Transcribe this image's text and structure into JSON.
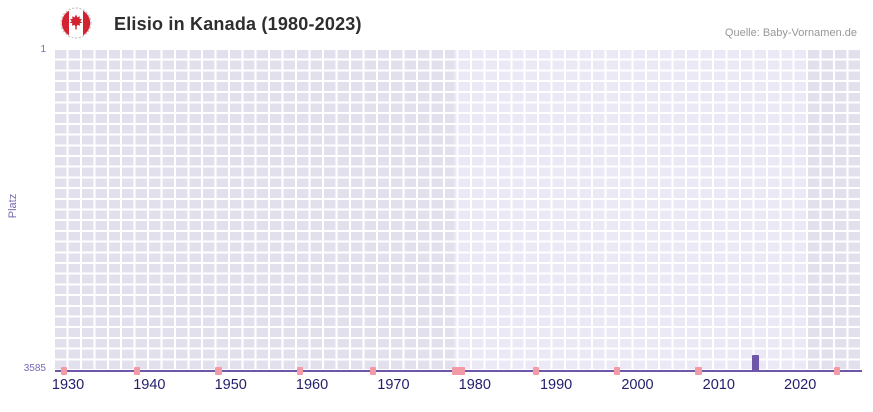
{
  "header": {
    "title": "Elisio in Kanada (1980-2023)",
    "source": "Quelle: Baby-Vornamen.de",
    "flag_icon": "canada-flag-icon"
  },
  "chart_data": {
    "type": "bar",
    "title": "Elisio in Kanada (1980-2023)",
    "xlabel": "",
    "ylabel": "Platz",
    "y_axis_inverted": true,
    "ylim": [
      1,
      3585
    ],
    "y_tick_labels": [
      "1",
      "3585"
    ],
    "x_tick_labels": [
      1930,
      1940,
      1950,
      1960,
      1970,
      1980,
      1990,
      2000,
      2010,
      2020
    ],
    "x_range": [
      1928.4,
      2027.6
    ],
    "grid": true,
    "legend": false,
    "series": [
      {
        "name": "Elisio",
        "points": [
          {
            "year": 2014,
            "rank": 3585
          }
        ]
      }
    ],
    "rare_year_markers": [
      {
        "year": 1929
      },
      {
        "year": 1938
      },
      {
        "year": 1948
      },
      {
        "year": 1958
      },
      {
        "year": 1967
      },
      {
        "year": 1977,
        "span_years": 2
      },
      {
        "year": 1987
      },
      {
        "year": 1997
      },
      {
        "year": 2007
      },
      {
        "year": 2024
      }
    ],
    "background_bands": [
      {
        "from": 1928.4,
        "to": 1977.5,
        "shade": "dark"
      },
      {
        "from": 1977.5,
        "to": 2021.0,
        "shade": "light"
      },
      {
        "from": 2021.0,
        "to": 2027.6,
        "shade": "dark"
      }
    ],
    "colors": {
      "bar": "#6e57a9",
      "rare_marker": "#f29aa5",
      "band_dark": "#e3e0ee",
      "band_light": "#ebe9f5",
      "grid_line": "#ffffff",
      "axis_line": "#6e57a9",
      "x_tick_label": "#221e6b",
      "y_tick_label": "#7a68b5",
      "title": "#2e2e2e",
      "source": "#979797"
    }
  }
}
